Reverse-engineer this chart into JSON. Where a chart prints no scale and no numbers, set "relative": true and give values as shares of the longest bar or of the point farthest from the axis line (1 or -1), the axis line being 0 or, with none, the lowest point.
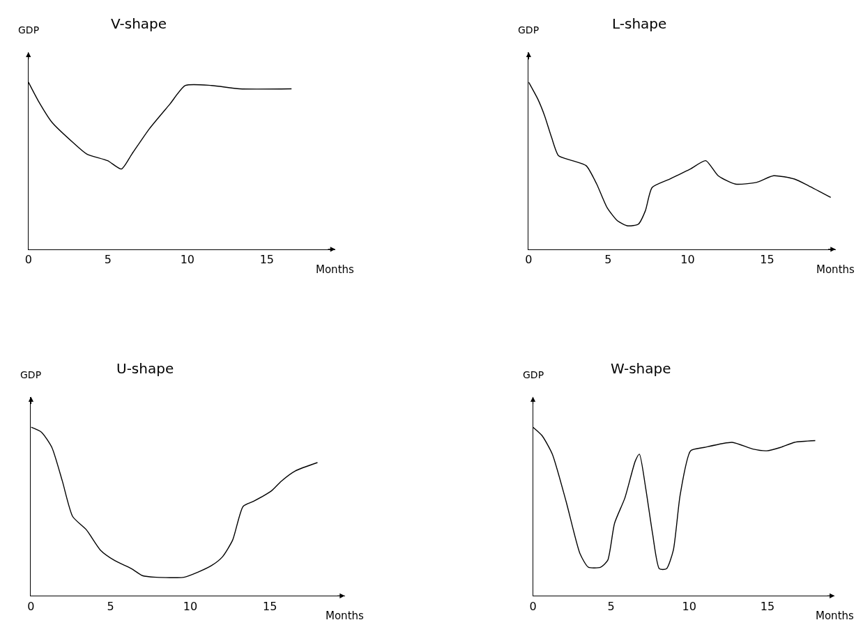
{
  "chart_data": [
    {
      "type": "line",
      "title": "V-shape",
      "xlabel": "Months",
      "ylabel": "GDP",
      "relative": true,
      "xlim": [
        0,
        19.3
      ],
      "xticks": [
        0,
        5,
        10,
        15
      ],
      "line_style": "solid",
      "marker": "none",
      "series": [
        {
          "color": "#000000",
          "x": [
            0,
            0.61,
            1.48,
            2.79,
            3.67,
            4.98,
            5.85,
            6.51,
            7.6,
            8.91,
            9.87,
            11.53,
            13.28,
            16.55
          ],
          "values": [
            1.0,
            0.89,
            0.76,
            0.64,
            0.57,
            0.53,
            0.48,
            0.57,
            0.72,
            0.87,
            0.98,
            0.98,
            0.96,
            0.96
          ]
        }
      ]
    },
    {
      "type": "line",
      "title": "L-shape",
      "xlabel": "Months",
      "ylabel": "GDP",
      "relative": true,
      "xlim": [
        0,
        19.3
      ],
      "xticks": [
        0,
        5,
        10,
        15
      ],
      "line_style": "solid",
      "marker": "none",
      "series": [
        {
          "color": "#000000",
          "x": [
            0,
            0.57,
            1.0,
            1.44,
            1.88,
            2.75,
            3.62,
            4.28,
            4.93,
            5.59,
            6.24,
            6.9,
            7.34,
            7.77,
            8.87,
            10.17,
            11.14,
            11.92,
            13.01,
            14.32,
            15.41,
            16.72,
            17.6,
            19.0
          ],
          "values": [
            1.0,
            0.9,
            0.8,
            0.67,
            0.56,
            0.53,
            0.5,
            0.39,
            0.25,
            0.17,
            0.14,
            0.15,
            0.23,
            0.37,
            0.42,
            0.48,
            0.53,
            0.44,
            0.39,
            0.4,
            0.44,
            0.42,
            0.38,
            0.31
          ]
        }
      ]
    },
    {
      "type": "line",
      "title": "U-shape",
      "xlabel": "Months",
      "ylabel": "GDP",
      "relative": true,
      "xlim": [
        0,
        19.7
      ],
      "xticks": [
        0,
        5,
        10,
        15
      ],
      "line_style": "solid",
      "marker": "none",
      "series": [
        {
          "color": "#000000",
          "x": [
            0,
            0.66,
            1.31,
            1.97,
            2.62,
            3.49,
            4.37,
            5.24,
            6.33,
            6.99,
            7.86,
            9.61,
            10.48,
            11.35,
            12.01,
            12.66,
            13.32,
            13.97,
            15.07,
            15.72,
            16.59,
            17.99
          ],
          "values": [
            1.0,
            0.97,
            0.88,
            0.68,
            0.47,
            0.39,
            0.27,
            0.21,
            0.16,
            0.12,
            0.11,
            0.11,
            0.14,
            0.18,
            0.23,
            0.33,
            0.53,
            0.56,
            0.62,
            0.68,
            0.74,
            0.79
          ]
        }
      ]
    },
    {
      "type": "line",
      "title": "W-shape",
      "xlabel": "Months",
      "ylabel": "GDP",
      "relative": true,
      "xlim": [
        0,
        19.3
      ],
      "xticks": [
        0,
        5,
        10,
        15
      ],
      "line_style": "solid",
      "marker": "none",
      "series": [
        {
          "color": "#000000",
          "x": [
            0,
            0.58,
            1.24,
            2.12,
            3.01,
            3.54,
            4.34,
            4.78,
            5.22,
            5.88,
            6.55,
            6.81,
            7.21,
            7.65,
            8.09,
            8.54,
            8.98,
            9.42,
            10.09,
            10.97,
            12.74,
            14.07,
            14.96,
            15.84,
            16.73,
            18.06
          ],
          "values": [
            1.0,
            0.95,
            0.84,
            0.56,
            0.25,
            0.17,
            0.17,
            0.21,
            0.43,
            0.58,
            0.8,
            0.84,
            0.64,
            0.37,
            0.16,
            0.16,
            0.27,
            0.6,
            0.86,
            0.88,
            0.91,
            0.87,
            0.86,
            0.88,
            0.91,
            0.92
          ]
        }
      ]
    }
  ]
}
